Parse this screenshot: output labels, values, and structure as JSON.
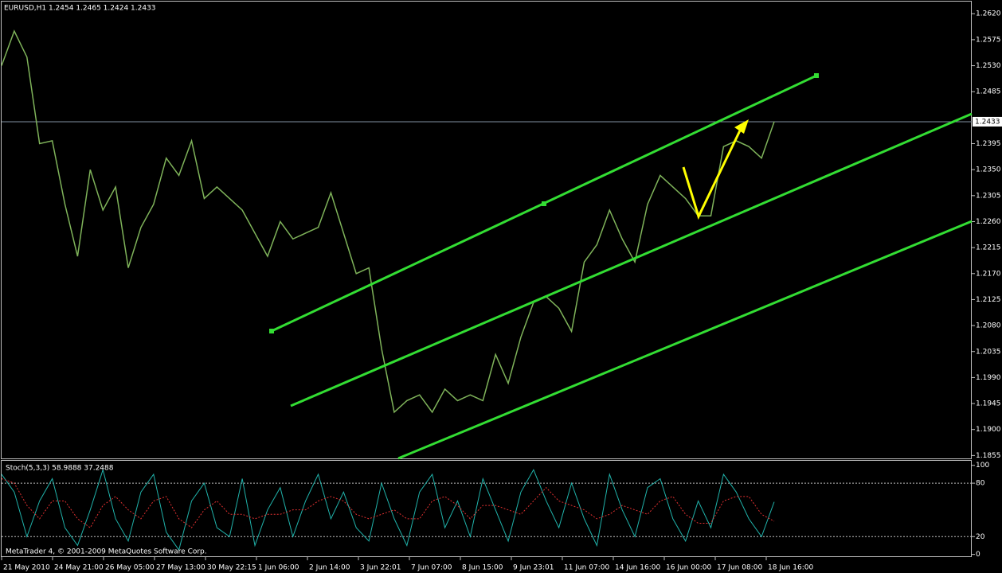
{
  "chart_data": [
    {
      "type": "line",
      "title": "EURUSD,H1  1.2454 1.2465 1.2424 1.2433",
      "color": "#7fb35a",
      "values": [
        1.253,
        1.259,
        1.2545,
        1.2395,
        1.24,
        1.229,
        1.22,
        1.235,
        1.228,
        1.232,
        1.218,
        1.225,
        1.229,
        1.237,
        1.234,
        1.24,
        1.23,
        1.232,
        1.23,
        1.228,
        1.224,
        1.22,
        1.226,
        1.223,
        1.224,
        1.225,
        1.231,
        1.224,
        1.217,
        1.218,
        1.204,
        1.193,
        1.195,
        1.196,
        1.193,
        1.197,
        1.195,
        1.196,
        1.195,
        1.203,
        1.198,
        1.206,
        1.212,
        1.213,
        1.211,
        1.207,
        1.219,
        1.222,
        1.228,
        1.223,
        1.219,
        1.229,
        1.234,
        1.232,
        1.23,
        1.227,
        1.227,
        1.239,
        1.24,
        1.239,
        1.237,
        1.2433
      ],
      "price_line": 1.2433,
      "ylim": [
        1.185,
        1.2641
      ],
      "yticks": [
        {
          "value": 1.262,
          "label": "1.2620"
        },
        1.2575,
        {
          "value": 1.253,
          "label": "1.2530"
        },
        1.2485,
        1.2395,
        {
          "value": 1.235,
          "label": "1.2350"
        },
        1.2305,
        {
          "value": 1.226,
          "label": "1.2260"
        },
        1.2215,
        {
          "value": 1.217,
          "label": "1.2170"
        },
        1.2125,
        {
          "value": 1.208,
          "label": "1.2080"
        },
        1.2035,
        {
          "value": 1.199,
          "label": "1.1990"
        },
        1.1945,
        {
          "value": 1.19,
          "label": "1.1900"
        },
        1.1855
      ]
    },
    {
      "type": "line",
      "title": "Stoch(5,3,3) 58.9888 37.2488",
      "series": [
        {
          "color": "#20b2aa",
          "values": [
            90,
            70,
            20,
            60,
            85,
            30,
            10,
            50,
            95,
            40,
            15,
            70,
            90,
            25,
            5,
            60,
            80,
            30,
            20,
            85,
            10,
            50,
            75,
            20,
            60,
            90,
            40,
            70,
            30,
            15,
            80,
            40,
            10,
            70,
            90,
            30,
            60,
            20,
            85,
            50,
            15,
            70,
            95,
            60,
            30,
            80,
            40,
            10,
            90,
            50,
            20,
            75,
            85,
            40,
            15,
            60,
            30,
            90,
            70,
            40,
            20,
            58.9888
          ]
        },
        {
          "color": "#e03030",
          "values": [
            85,
            80,
            55,
            40,
            60,
            60,
            40,
            30,
            55,
            65,
            50,
            40,
            60,
            65,
            40,
            30,
            50,
            60,
            45,
            45,
            40,
            45,
            45,
            50,
            50,
            60,
            65,
            60,
            45,
            40,
            45,
            50,
            40,
            40,
            60,
            65,
            55,
            40,
            55,
            55,
            50,
            45,
            60,
            75,
            60,
            55,
            50,
            40,
            45,
            55,
            50,
            45,
            60,
            65,
            45,
            35,
            35,
            60,
            65,
            65,
            45,
            37.2488
          ],
          "dashed": true
        }
      ],
      "ylim": [
        -3,
        106
      ],
      "yticks": [
        100,
        80,
        20,
        0
      ],
      "levels": [
        80,
        20
      ]
    }
  ],
  "time_axis": {
    "labels": [
      "21 May 2010",
      "24 May 21:00",
      "26 May 05:00",
      "27 May 13:00",
      "30 May 22:15",
      "1 Jun 06:00",
      "2 Jun 14:00",
      "3 Jun 22:01",
      "7 Jun 07:00",
      "8 Jun 15:00",
      "9 Jun 23:01",
      "11 Jun 07:00",
      "14 Jun 16:00",
      "16 Jun 00:00",
      "17 Jun 08:00",
      "18 Jun 16:00"
    ]
  },
  "footer": "MetaTrader 4, © 2001-2009 MetaQuotes Software Corp."
}
